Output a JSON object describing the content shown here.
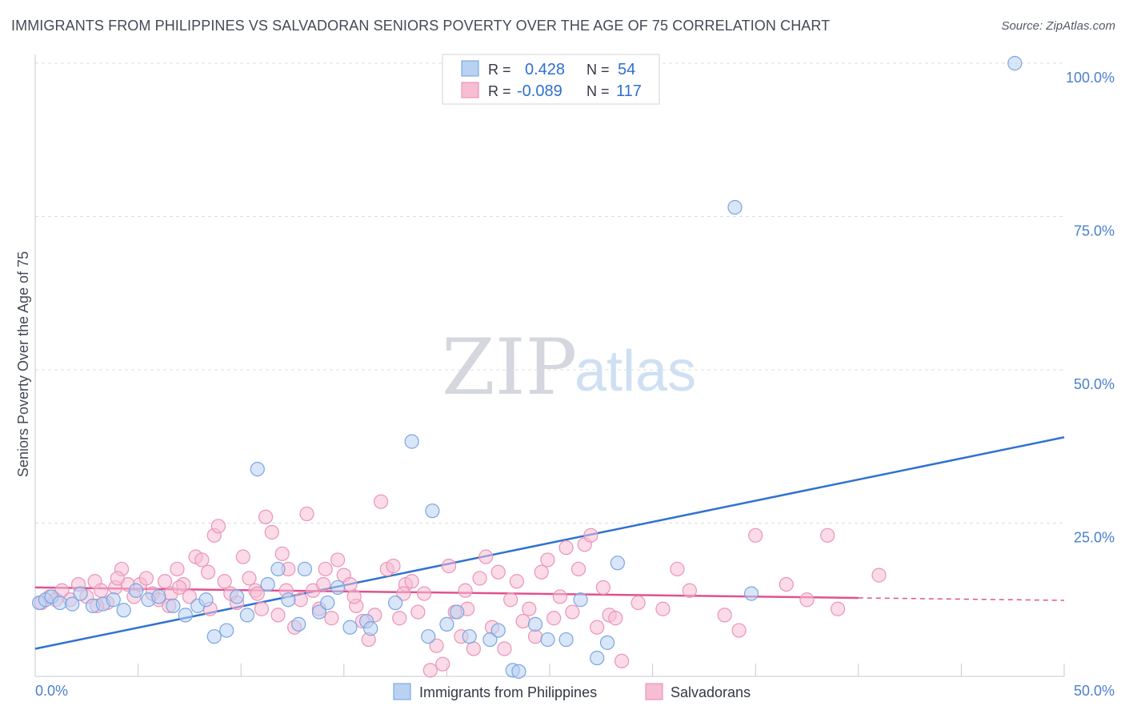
{
  "title": "IMMIGRANTS FROM PHILIPPINES VS SALVADORAN SENIORS POVERTY OVER THE AGE OF 75 CORRELATION CHART",
  "source": "Source: ZipAtlas.com",
  "watermark": {
    "zip": "ZIP",
    "atlas": "atlas"
  },
  "colors": {
    "blue": "#4a86d8",
    "blue_fill": "#b9d2f2",
    "pink": "#e8609a",
    "pink_fill": "#f6bdd3",
    "grid": "#d9dce2",
    "axis_text": "#4a7fd0"
  },
  "legend": {
    "rows": [
      {
        "r_label": "R =",
        "r_value": "0.428",
        "n_label": "N =",
        "n_value": "54"
      },
      {
        "r_label": "R =",
        "r_value": "-0.089",
        "n_label": "N =",
        "n_value": "117"
      }
    ]
  },
  "chart_data": {
    "type": "scatter",
    "title": "IMMIGRANTS FROM PHILIPPINES VS SALVADORAN SENIORS POVERTY OVER THE AGE OF 75 CORRELATION CHART",
    "xlabel": "",
    "ylabel": "Seniors Poverty Over the Age of 75",
    "xlim": [
      0,
      50
    ],
    "ylim": [
      0,
      100
    ],
    "x_tick_labels": [
      "0.0%",
      "50.0%"
    ],
    "y_tick_labels": [
      "25.0%",
      "50.0%",
      "75.0%",
      "100.0%"
    ],
    "y_ticks": [
      25,
      50,
      75,
      100
    ],
    "grid": true,
    "legend_position": "top-center",
    "series": [
      {
        "name": "Immigrants from Philippines",
        "color": "#4a86d8",
        "r": 0.428,
        "n": 54,
        "trend": {
          "x": [
            0,
            50
          ],
          "y": [
            4.5,
            39
          ]
        },
        "points": [
          [
            0.2,
            12
          ],
          [
            0.5,
            12.5
          ],
          [
            0.8,
            13
          ],
          [
            1.2,
            12
          ],
          [
            1.8,
            11.8
          ],
          [
            2.2,
            13.5
          ],
          [
            2.8,
            11.5
          ],
          [
            3.3,
            11.8
          ],
          [
            3.8,
            12.5
          ],
          [
            4.3,
            10.8
          ],
          [
            4.9,
            14
          ],
          [
            5.5,
            12.5
          ],
          [
            6.0,
            13
          ],
          [
            6.7,
            11.5
          ],
          [
            7.3,
            10
          ],
          [
            7.9,
            11.5
          ],
          [
            8.3,
            12.5
          ],
          [
            8.7,
            6.5
          ],
          [
            9.3,
            7.5
          ],
          [
            9.8,
            13
          ],
          [
            10.3,
            10
          ],
          [
            10.8,
            33.8
          ],
          [
            11.3,
            15
          ],
          [
            11.8,
            17.5
          ],
          [
            12.3,
            12.5
          ],
          [
            12.8,
            8.5
          ],
          [
            13.1,
            17.5
          ],
          [
            13.8,
            10.5
          ],
          [
            14.2,
            12
          ],
          [
            14.7,
            14.5
          ],
          [
            15.3,
            8
          ],
          [
            16.1,
            9
          ],
          [
            16.3,
            7.8
          ],
          [
            17.5,
            12
          ],
          [
            18.3,
            38.3
          ],
          [
            19.1,
            6.5
          ],
          [
            19.3,
            27
          ],
          [
            20.0,
            8.5
          ],
          [
            20.5,
            10.5
          ],
          [
            21.1,
            6.5
          ],
          [
            22.1,
            6
          ],
          [
            22.5,
            7.5
          ],
          [
            23.2,
            1
          ],
          [
            23.5,
            0.8
          ],
          [
            24.3,
            8.5
          ],
          [
            24.9,
            6
          ],
          [
            25.8,
            6
          ],
          [
            26.5,
            12.5
          ],
          [
            27.3,
            3
          ],
          [
            27.8,
            5.5
          ],
          [
            28.3,
            18.5
          ],
          [
            34.0,
            76.5
          ],
          [
            34.8,
            13.5
          ],
          [
            47.6,
            100
          ]
        ]
      },
      {
        "name": "Salvadorans",
        "color": "#e8609a",
        "r": -0.089,
        "n": 117,
        "trend": {
          "x": [
            0,
            40
          ],
          "y": [
            14.5,
            12.8
          ]
        },
        "trend_dashed": {
          "x": [
            40,
            50
          ],
          "y": [
            12.8,
            12.4
          ]
        },
        "points": [
          [
            0.3,
            12
          ],
          [
            0.7,
            13
          ],
          [
            1.0,
            12.5
          ],
          [
            1.3,
            14
          ],
          [
            1.7,
            12.5
          ],
          [
            2.1,
            15
          ],
          [
            2.5,
            13
          ],
          [
            2.9,
            15.5
          ],
          [
            3.2,
            14
          ],
          [
            3.5,
            12
          ],
          [
            3.9,
            14.5
          ],
          [
            4.2,
            17.5
          ],
          [
            4.5,
            15
          ],
          [
            4.8,
            13
          ],
          [
            5.1,
            15
          ],
          [
            5.4,
            16
          ],
          [
            5.7,
            13.5
          ],
          [
            6.0,
            12.5
          ],
          [
            6.3,
            15.5
          ],
          [
            6.6,
            13.5
          ],
          [
            6.9,
            17.5
          ],
          [
            7.2,
            15
          ],
          [
            7.5,
            13
          ],
          [
            7.8,
            19.5
          ],
          [
            8.1,
            19
          ],
          [
            8.4,
            17
          ],
          [
            8.7,
            23
          ],
          [
            8.9,
            24.5
          ],
          [
            9.2,
            15.5
          ],
          [
            9.5,
            13.5
          ],
          [
            9.8,
            12
          ],
          [
            10.1,
            19.5
          ],
          [
            10.4,
            16
          ],
          [
            10.7,
            14
          ],
          [
            11.0,
            11
          ],
          [
            11.2,
            26
          ],
          [
            11.5,
            23.5
          ],
          [
            11.8,
            10
          ],
          [
            12.0,
            20
          ],
          [
            12.3,
            17.5
          ],
          [
            12.6,
            8
          ],
          [
            12.9,
            12.5
          ],
          [
            13.2,
            26.5
          ],
          [
            13.5,
            14
          ],
          [
            13.8,
            11
          ],
          [
            14.1,
            17.5
          ],
          [
            14.4,
            9.5
          ],
          [
            14.7,
            19
          ],
          [
            15.0,
            16.5
          ],
          [
            15.3,
            15
          ],
          [
            15.6,
            11.5
          ],
          [
            15.9,
            9
          ],
          [
            16.2,
            6
          ],
          [
            16.5,
            10
          ],
          [
            16.8,
            28.5
          ],
          [
            17.1,
            17.5
          ],
          [
            17.4,
            18
          ],
          [
            17.7,
            9.5
          ],
          [
            18.0,
            15
          ],
          [
            18.3,
            15.5
          ],
          [
            18.6,
            10.5
          ],
          [
            18.9,
            13.5
          ],
          [
            19.2,
            1
          ],
          [
            19.5,
            5
          ],
          [
            19.8,
            2
          ],
          [
            20.1,
            18
          ],
          [
            20.4,
            10.5
          ],
          [
            20.7,
            6.5
          ],
          [
            21.0,
            11
          ],
          [
            21.3,
            4.5
          ],
          [
            21.6,
            16
          ],
          [
            21.9,
            19.5
          ],
          [
            22.2,
            8
          ],
          [
            22.5,
            17
          ],
          [
            22.8,
            4.5
          ],
          [
            23.1,
            12.5
          ],
          [
            23.4,
            15.5
          ],
          [
            23.7,
            9
          ],
          [
            24.0,
            11
          ],
          [
            24.3,
            6.5
          ],
          [
            24.6,
            17
          ],
          [
            24.9,
            19
          ],
          [
            25.2,
            9.5
          ],
          [
            25.5,
            13
          ],
          [
            25.8,
            21
          ],
          [
            26.1,
            10.5
          ],
          [
            26.4,
            17.5
          ],
          [
            26.7,
            21.5
          ],
          [
            27.0,
            23
          ],
          [
            27.3,
            8
          ],
          [
            27.6,
            14.5
          ],
          [
            27.9,
            10
          ],
          [
            28.2,
            9.5
          ],
          [
            28.5,
            2.5
          ],
          [
            29.3,
            12
          ],
          [
            30.5,
            11
          ],
          [
            31.2,
            17.5
          ],
          [
            31.8,
            14
          ],
          [
            33.5,
            10
          ],
          [
            34.2,
            7.5
          ],
          [
            35.0,
            23
          ],
          [
            36.5,
            15
          ],
          [
            37.5,
            12.5
          ],
          [
            38.5,
            23
          ],
          [
            39.0,
            11
          ],
          [
            41.0,
            16.5
          ],
          [
            3.0,
            11.5
          ],
          [
            4.0,
            16
          ],
          [
            6.5,
            11.5
          ],
          [
            7.0,
            14.5
          ],
          [
            8.5,
            11
          ],
          [
            10.8,
            13.5
          ],
          [
            12.2,
            14
          ],
          [
            14.0,
            15
          ],
          [
            15.5,
            13
          ],
          [
            17.9,
            13.5
          ],
          [
            20.9,
            14
          ]
        ]
      }
    ]
  },
  "bottom_legend": [
    {
      "label": "Immigrants from Philippines"
    },
    {
      "label": "Salvadorans"
    }
  ]
}
